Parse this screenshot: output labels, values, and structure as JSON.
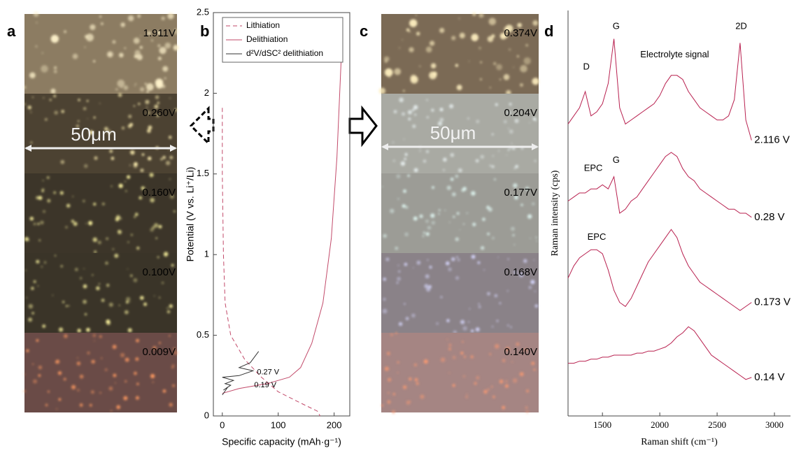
{
  "panel_letters": [
    "a",
    "b",
    "c",
    "d"
  ],
  "panel_a": {
    "labels": [
      "1.911V",
      "0.260V",
      "0.160V",
      "0.100V",
      "0.009V"
    ],
    "scale_bar": "50μm"
  },
  "panel_c": {
    "labels": [
      "0.374V",
      "0.204V",
      "0.177V",
      "0.168V",
      "0.140V"
    ],
    "scale_bar": "50μm"
  },
  "chart_data": [
    {
      "type": "line",
      "xlabel": "Specific capacity (mAh·g⁻¹)",
      "ylabel": "Potential (V vs. Li⁺/Li)",
      "xlim": [
        -16,
        228
      ],
      "ylim": [
        0,
        2.5
      ],
      "xticks": [
        0,
        100,
        200
      ],
      "yticks": [
        0,
        0.5,
        1,
        1.5,
        2,
        2.5
      ],
      "legend": "upper left",
      "series": [
        {
          "name": "Lithiation",
          "color": "#c24a6a",
          "style": "dashed",
          "x": [
            0,
            0,
            2,
            5,
            15,
            40,
            70,
            100,
            140,
            170,
            175
          ],
          "values": [
            1.91,
            1.5,
            1.0,
            0.7,
            0.5,
            0.35,
            0.24,
            0.15,
            0.08,
            0.03,
            0
          ]
        },
        {
          "name": "Delithiation",
          "color": "#c24a6a",
          "style": "solid",
          "x": [
            0,
            30,
            80,
            120,
            140,
            160,
            180,
            195,
            205,
            210,
            215
          ],
          "values": [
            0.14,
            0.17,
            0.2,
            0.24,
            0.3,
            0.45,
            0.7,
            1.1,
            1.6,
            2.0,
            2.4
          ]
        },
        {
          "name": "d²V/dSC² delithiation",
          "color": "#333333",
          "style": "solid",
          "x": [
            0,
            10,
            2,
            15,
            5,
            20,
            0,
            30,
            55,
            30,
            50,
            65
          ],
          "values": [
            0.13,
            0.18,
            0.16,
            0.19,
            0.2,
            0.22,
            0.24,
            0.25,
            0.28,
            0.3,
            0.33,
            0.4
          ]
        }
      ],
      "annotations": [
        {
          "text": "0.27 V",
          "x": 62,
          "y": 0.27
        },
        {
          "text": "0.19 V",
          "x": 57,
          "y": 0.19
        }
      ]
    },
    {
      "type": "line",
      "xlabel": "Raman shift (cm⁻¹)",
      "ylabel": "Raman intensity (cps)",
      "xlim": [
        1200,
        3140
      ],
      "ylim": [
        0,
        10
      ],
      "xticks": [
        1500,
        2000,
        2500,
        3000
      ],
      "x": [
        1200,
        1250,
        1300,
        1350,
        1400,
        1450,
        1500,
        1550,
        1600,
        1650,
        1700,
        1750,
        1800,
        1850,
        1900,
        1950,
        2000,
        2050,
        2100,
        2150,
        2200,
        2250,
        2300,
        2350,
        2400,
        2450,
        2500,
        2550,
        2600,
        2650,
        2700,
        2750,
        2800
      ],
      "series": [
        {
          "name": "2.116 V",
          "color": "#b8204f",
          "values": [
            7.2,
            7.4,
            7.6,
            8.0,
            7.4,
            7.5,
            7.7,
            8.2,
            9.3,
            7.6,
            7.2,
            7.3,
            7.4,
            7.5,
            7.6,
            7.7,
            7.9,
            8.2,
            8.4,
            8.4,
            8.3,
            8.0,
            7.8,
            7.6,
            7.5,
            7.4,
            7.3,
            7.3,
            7.4,
            7.8,
            9.2,
            7.3,
            6.8
          ]
        },
        {
          "name": "0.28 V",
          "color": "#b8204f",
          "values": [
            5.3,
            5.4,
            5.5,
            5.5,
            5.6,
            5.6,
            5.7,
            5.6,
            5.9,
            5.0,
            5.1,
            5.3,
            5.4,
            5.6,
            5.8,
            6.0,
            6.2,
            6.4,
            6.5,
            6.4,
            6.1,
            5.9,
            5.8,
            5.6,
            5.5,
            5.4,
            5.3,
            5.2,
            5.1,
            5.1,
            5.0,
            5.0,
            4.9
          ]
        },
        {
          "name": "0.173 V",
          "color": "#b8204f",
          "values": [
            3.4,
            3.7,
            3.9,
            4.0,
            4.1,
            4.1,
            4.0,
            3.6,
            3.1,
            2.8,
            2.7,
            2.9,
            3.2,
            3.5,
            3.8,
            4.0,
            4.2,
            4.4,
            4.6,
            4.4,
            4.0,
            3.7,
            3.5,
            3.3,
            3.2,
            3.1,
            3.0,
            2.9,
            2.8,
            2.7,
            2.6,
            2.7,
            2.8
          ]
        },
        {
          "name": "0.14 V",
          "color": "#b8204f",
          "values": [
            1.3,
            1.3,
            1.35,
            1.35,
            1.4,
            1.4,
            1.45,
            1.45,
            1.5,
            1.5,
            1.5,
            1.5,
            1.55,
            1.55,
            1.6,
            1.6,
            1.65,
            1.7,
            1.8,
            1.95,
            2.05,
            2.2,
            2.1,
            1.9,
            1.7,
            1.5,
            1.4,
            1.3,
            1.2,
            1.1,
            1.0,
            0.9,
            0.95
          ]
        }
      ],
      "annotations": [
        {
          "text": "D",
          "x": 1360,
          "y": 8.6
        },
        {
          "text": "G",
          "x": 1620,
          "y": 9.6
        },
        {
          "text": "2D",
          "x": 2710,
          "y": 9.6
        },
        {
          "text": "Electrolyte signal",
          "x": 2130,
          "y": 8.9
        },
        {
          "text": "EPC",
          "x": 1420,
          "y": 6.1
        },
        {
          "text": "G",
          "x": 1620,
          "y": 6.3
        },
        {
          "text": "EPC",
          "x": 1450,
          "y": 4.4
        }
      ]
    }
  ]
}
